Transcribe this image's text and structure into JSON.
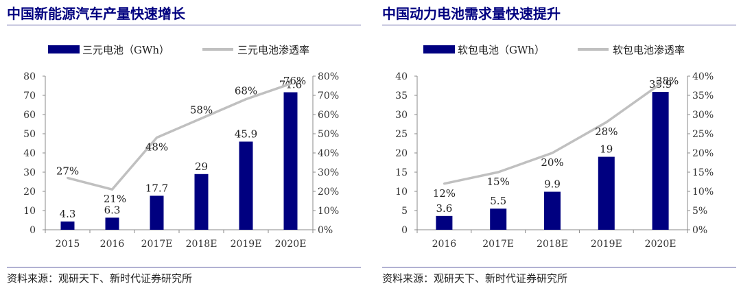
{
  "panels": [
    {
      "title": "中国新能源汽车产量快速增长",
      "source": "资料来源：观研天下、新时代证券研究所",
      "chart_data": {
        "type": "bar+line",
        "categories": [
          "2015",
          "2016",
          "2017E",
          "2018E",
          "2019E",
          "2020E"
        ],
        "series": [
          {
            "name": "三元电池（GWh）",
            "type": "bar",
            "axis": "left",
            "values": [
              4.3,
              6.3,
              17.7,
              29,
              45.9,
              71.6
            ],
            "labels": [
              "4.3",
              "6.3",
              "17.7",
              "29",
              "45.9",
              "71.6"
            ],
            "color": "#000080"
          },
          {
            "name": "三元电池渗透率",
            "type": "line",
            "axis": "right",
            "values": [
              27,
              21,
              48,
              58,
              68,
              76
            ],
            "labels": [
              "27%",
              "21%",
              "48%",
              "58%",
              "68%",
              "76%"
            ],
            "color": "#c0c0c0"
          }
        ],
        "left_axis": {
          "min": 0,
          "max": 80,
          "step": 10,
          "ticks": [
            "0",
            "10",
            "20",
            "30",
            "40",
            "50",
            "60",
            "70",
            "80"
          ]
        },
        "right_axis": {
          "min": 0,
          "max": 80,
          "step": 10,
          "ticks": [
            "0%",
            "10%",
            "20%",
            "30%",
            "40%",
            "50%",
            "60%",
            "70%",
            "80%"
          ]
        },
        "legend_position": "top",
        "grid": false
      }
    },
    {
      "title": "中国动力电池需求量快速提升",
      "source": "资料来源：观研天下、新时代证券研究所",
      "chart_data": {
        "type": "bar+line",
        "categories": [
          "2016",
          "2017E",
          "2018E",
          "2019E",
          "2020E"
        ],
        "series": [
          {
            "name": "软包电池（GWh）",
            "type": "bar",
            "axis": "left",
            "values": [
              3.6,
              5.5,
              9.9,
              19,
              35.9
            ],
            "labels": [
              "3.6",
              "5.5",
              "9.9",
              "19",
              "35.9"
            ],
            "color": "#000080"
          },
          {
            "name": "软包电池渗透率",
            "type": "line",
            "axis": "right",
            "values": [
              12,
              15,
              20,
              28,
              38
            ],
            "labels": [
              "12%",
              "15%",
              "20%",
              "28%",
              "38%"
            ],
            "color": "#c0c0c0"
          }
        ],
        "left_axis": {
          "min": 0,
          "max": 40,
          "step": 5,
          "ticks": [
            "0",
            "5",
            "10",
            "15",
            "20",
            "25",
            "30",
            "35",
            "40"
          ]
        },
        "right_axis": {
          "min": 0,
          "max": 40,
          "step": 5,
          "ticks": [
            "0%",
            "5%",
            "10%",
            "15%",
            "20%",
            "25%",
            "30%",
            "35%",
            "40%"
          ]
        },
        "legend_position": "top",
        "grid": false
      }
    }
  ]
}
